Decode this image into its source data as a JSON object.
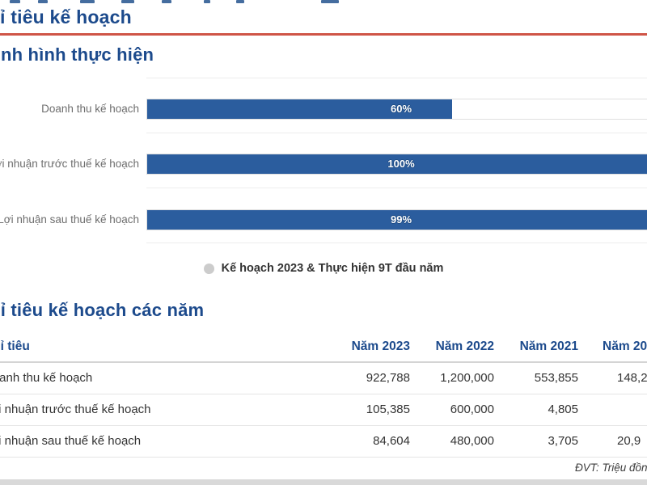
{
  "page": {
    "title": "Chỉ tiêu kế hoạch",
    "sections": {
      "performance": "Tình hình thực hiện",
      "plan_years": "Chỉ tiêu kế hoạch các năm"
    },
    "unit_note": "ĐVT: Triệu đồng"
  },
  "colors": {
    "heading_blue": "#1c4a8c",
    "bar_blue": "#2b5d9e",
    "accent_red": "#cf5547",
    "legend_marker_gray": "#cccccc",
    "category_label_gray": "#6e6e6e"
  },
  "chart_data": {
    "type": "bar",
    "orientation": "horizontal",
    "title": "Tình hình thực hiện",
    "categories": [
      "Doanh thu kế hoạch",
      "Lợi nhuận trước thuế kế hoạch",
      "Lợi nhuận sau thuế kế hoạch"
    ],
    "values": [
      60,
      100,
      99
    ],
    "value_labels": [
      "60%",
      "100%",
      "99%"
    ],
    "unit": "%",
    "xlim": [
      0,
      100
    ],
    "grid": "category separators only, no axis tick labels",
    "legend": "Kế hoạch 2023 & Thực hiện 9T đầu năm",
    "legend_position": "bottom-center"
  },
  "table": {
    "title": "Chỉ tiêu kế hoạch các năm",
    "columns": [
      "Chỉ tiêu",
      "Năm 2023",
      "Năm 2022",
      "Năm 2021",
      "Năm 20"
    ],
    "rows": [
      [
        "Doanh thu kế hoạch",
        "922,788",
        "1,200,000",
        "553,855",
        "148,2"
      ],
      [
        "Lợi nhuận trước thuế kế hoạch",
        "105,385",
        "600,000",
        "4,805",
        ""
      ],
      [
        "Lợi nhuận sau thuế kế hoạch",
        "84,604",
        "480,000",
        "3,705",
        "20,9"
      ]
    ]
  }
}
